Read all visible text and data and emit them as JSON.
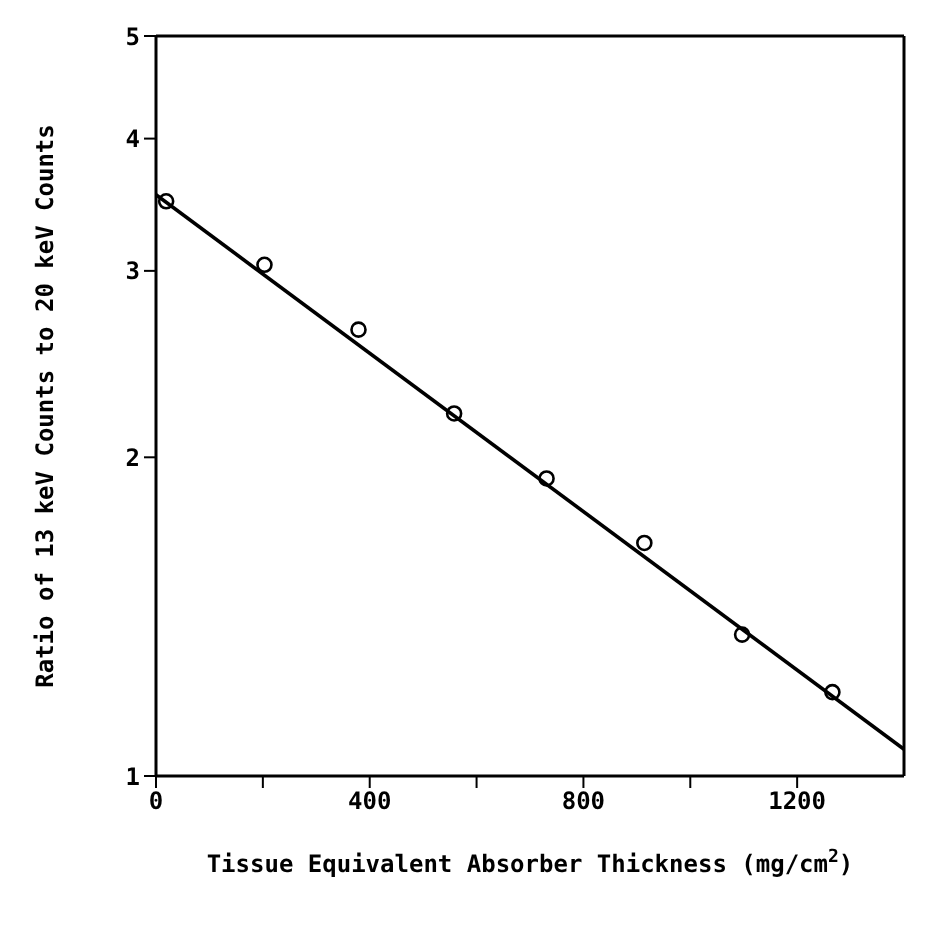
{
  "chart_data": {
    "type": "scatter",
    "xlabel": "Tissue Equivalent Absorber Thickness (mg/cm$^{2}$)",
    "ylabel": "Ratio of 13 keV Counts to 20 keV Counts",
    "log": "y",
    "grid": false,
    "legend": false,
    "xlim": [
      0,
      1400
    ],
    "xticks": [
      0,
      {
        "value": 200,
        "label": null
      },
      400,
      {
        "value": 600,
        "label": null
      },
      800,
      {
        "value": 1000,
        "label": null
      },
      1200
    ],
    "ylim": [
      1,
      5
    ],
    "yticks": [
      1,
      2,
      3,
      4,
      5
    ],
    "series": [
      {
        "marker": "circle",
        "color": "#000000",
        "x": [
          19,
          203,
          379,
          558,
          731,
          914,
          1097,
          1266
        ],
        "values": [
          3.49,
          3.04,
          2.64,
          2.2,
          1.91,
          1.66,
          1.36,
          1.2
        ]
      },
      {
        "type": "line",
        "marker": "none",
        "line_style": "solid",
        "color": "#000000",
        "x": [
          0,
          1400
        ],
        "values": [
          3.54,
          1.06
        ]
      }
    ]
  }
}
